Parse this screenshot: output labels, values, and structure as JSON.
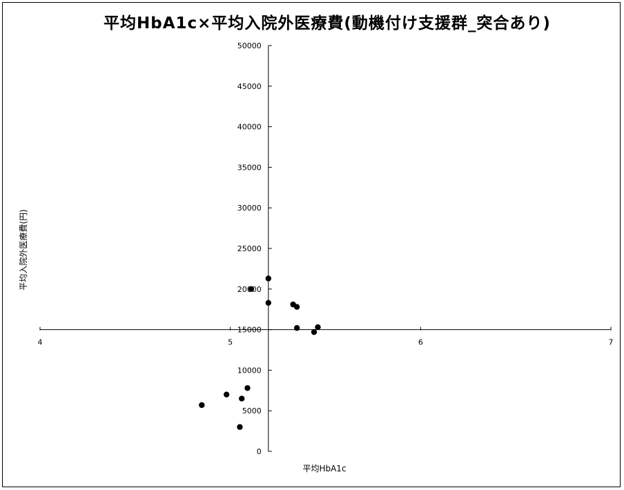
{
  "chart_data": {
    "type": "scatter",
    "title": "平均HbA1c×平均入院外医療費(動機付け支援群_突合あり)",
    "xlabel": "平均HbA1c",
    "ylabel": "平均入院外医療費(円)",
    "xlim": [
      4,
      7
    ],
    "ylim": [
      0,
      50000
    ],
    "x_ticks": [
      4,
      5,
      6,
      7
    ],
    "y_ticks": [
      0,
      5000,
      10000,
      15000,
      20000,
      25000,
      30000,
      35000,
      40000,
      45000,
      50000
    ],
    "x_axis_crosses_y_at": 15000,
    "y_axis_crosses_x_at": 5.2,
    "grid": false,
    "legend": "none",
    "marker_color": "#000000",
    "points": [
      {
        "x": 5.2,
        "y": 21300
      },
      {
        "x": 5.2,
        "y": 18300
      },
      {
        "x": 5.11,
        "y": 20000
      },
      {
        "x": 5.33,
        "y": 18100
      },
      {
        "x": 5.35,
        "y": 17800
      },
      {
        "x": 5.35,
        "y": 15200
      },
      {
        "x": 5.44,
        "y": 14700
      },
      {
        "x": 5.46,
        "y": 15300
      },
      {
        "x": 5.09,
        "y": 7800
      },
      {
        "x": 5.06,
        "y": 6500
      },
      {
        "x": 4.98,
        "y": 7000
      },
      {
        "x": 4.85,
        "y": 5700
      },
      {
        "x": 5.05,
        "y": 3000
      }
    ]
  }
}
